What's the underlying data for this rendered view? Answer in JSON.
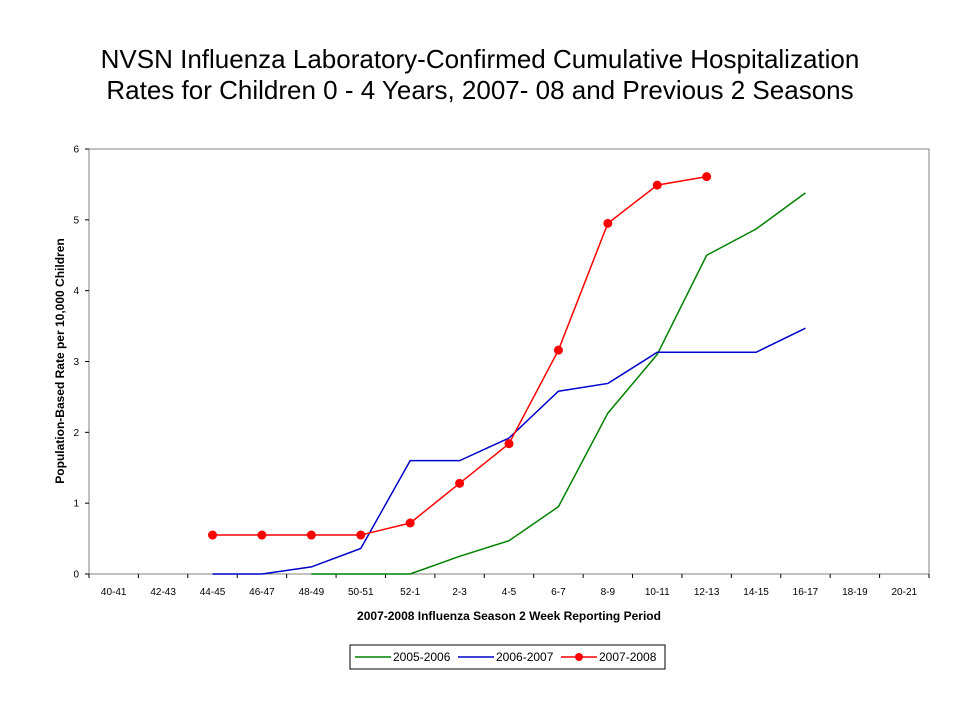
{
  "chart_data": {
    "type": "line",
    "title_lines": [
      "NVSN Influenza Laboratory-Confirmed Cumulative Hospitalization",
      "Rates for Children 0 - 4 Years, 2007- 08 and Previous 2 Seasons"
    ],
    "xlabel": "2007-2008 Influenza Season 2 Week Reporting Period",
    "ylabel": "Population-Based Rate per 10,000 Children",
    "ylim": [
      0,
      6
    ],
    "yticks": [
      "0",
      "1",
      "2",
      "3",
      "4",
      "5",
      "6"
    ],
    "categories": [
      "40-41",
      "42-43",
      "44-45",
      "46-47",
      "48-49",
      "50-51",
      "52-1",
      "2-3",
      "4-5",
      "6-7",
      "8-9",
      "10-11",
      "12-13",
      "14-15",
      "16-17",
      "18-19",
      "20-21"
    ],
    "series": [
      {
        "name": "2005-2006",
        "color": "#008000",
        "markers": false,
        "values": [
          null,
          null,
          null,
          null,
          0,
          0,
          0,
          0.25,
          0.47,
          0.95,
          2.27,
          3.1,
          4.5,
          4.87,
          5.38,
          null,
          null
        ]
      },
      {
        "name": "2006-2007",
        "color": "#0000cc",
        "markers": false,
        "values": [
          null,
          null,
          0,
          0,
          0.1,
          0.36,
          1.6,
          1.6,
          1.92,
          2.58,
          2.69,
          3.13,
          3.13,
          3.13,
          3.47,
          null,
          null
        ]
      },
      {
        "name": "2007-2008",
        "color": "#ff0000",
        "markers": true,
        "values": [
          null,
          null,
          0.55,
          0.55,
          0.55,
          0.55,
          0.72,
          1.28,
          1.84,
          3.16,
          4.95,
          5.49,
          5.61,
          null,
          null,
          null,
          null
        ]
      }
    ],
    "legend_position": "bottom-center",
    "grid": false
  }
}
